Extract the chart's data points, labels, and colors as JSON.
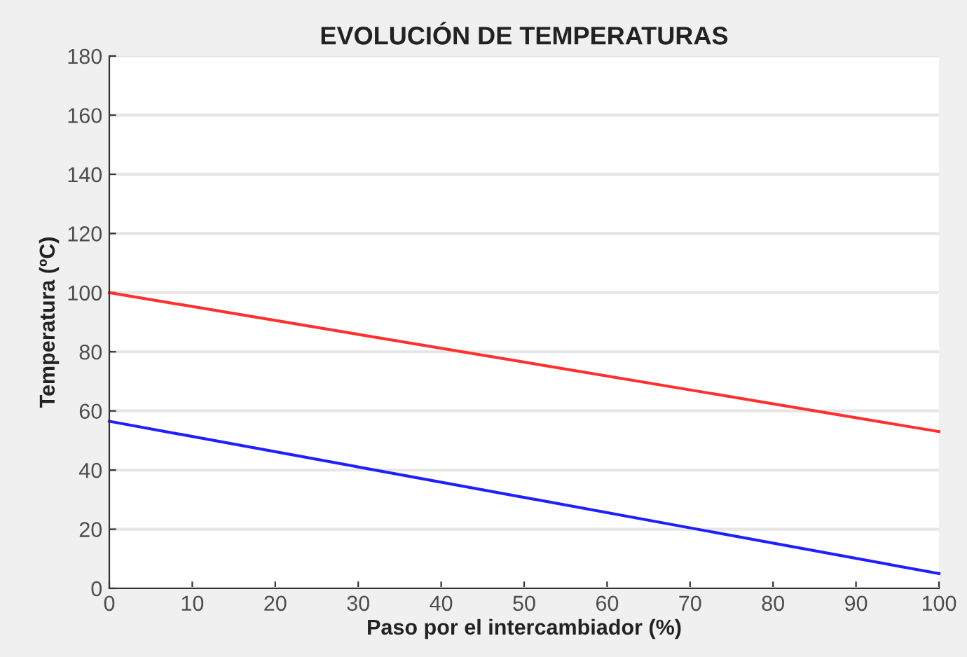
{
  "chart_data": {
    "type": "line",
    "title": "EVOLUCIÓN DE TEMPERATURAS",
    "xlabel": "Paso por el intercambiador (%)",
    "ylabel": "Temperatura (ºC)",
    "x": [
      0,
      100
    ],
    "series": [
      {
        "color": "#ff3030",
        "values": [
          100,
          53
        ]
      },
      {
        "color": "#2020ff",
        "values": [
          56.5,
          5
        ]
      }
    ],
    "xlim": [
      0,
      100
    ],
    "xticks": [
      0,
      10,
      20,
      30,
      40,
      50,
      60,
      70,
      80,
      90,
      100
    ],
    "ylim": [
      0,
      180
    ],
    "yticks": [
      0,
      20,
      40,
      60,
      80,
      100,
      120,
      140,
      160,
      180
    ],
    "grid": "y",
    "legend": false
  }
}
